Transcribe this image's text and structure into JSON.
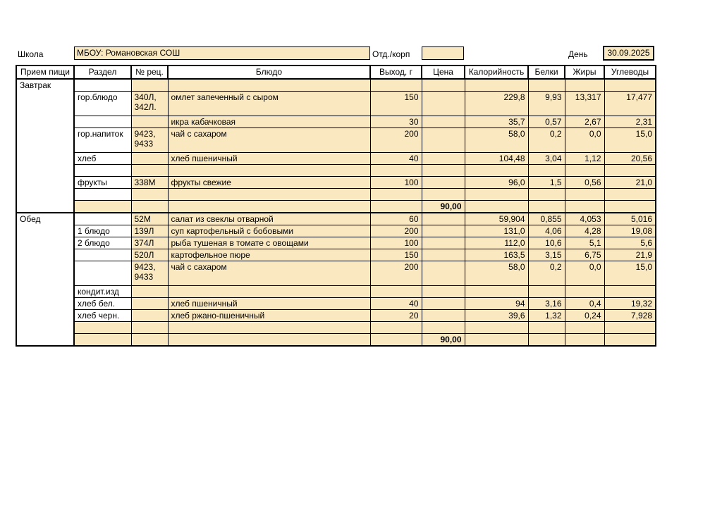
{
  "colors": {
    "cell_fill": "#fae8c0",
    "border": "#000000"
  },
  "topbar": {
    "school_label": "Школа",
    "school_value": "МБОУ: Романовская СОШ",
    "dept_label": "Отд./корп",
    "dept_value": "",
    "day_label": "День",
    "day_value": "30.09.2025"
  },
  "table": {
    "headers": [
      "Прием пищи",
      "Раздел",
      "№ рец.",
      "Блюдо",
      "Выход, г",
      "Цена",
      "Калорийность",
      "Белки",
      "Жиры",
      "Углеводы"
    ],
    "sections": [
      {
        "meal": "Завтрак",
        "rows": [
          {
            "razdel": "",
            "rec": "",
            "dish": "",
            "out": "",
            "price": "",
            "cal": "",
            "prot": "",
            "fat": "",
            "carb": ""
          },
          {
            "razdel": "гор.блюдо",
            "rec": "340Л,\n342Л.",
            "dish": "омлет запеченный с сыром",
            "out": "150",
            "price": "",
            "cal": "229,8",
            "prot": "9,93",
            "fat": "13,317",
            "carb": "17,477",
            "tall": true
          },
          {
            "razdel": "",
            "rec": "",
            "dish": "икра кабачковая",
            "out": "30",
            "price": "",
            "cal": "35,7",
            "prot": "0,57",
            "fat": "2,67",
            "carb": "2,31"
          },
          {
            "razdel": "гор.напиток",
            "rec": "9423,\n9433",
            "dish": "чай с сахаром",
            "out": "200",
            "price": "",
            "cal": "58,0",
            "prot": "0,2",
            "fat": "0,0",
            "carb": "15,0",
            "tall": true
          },
          {
            "razdel": "хлеб",
            "rec": "",
            "dish": "хлеб пшеничный",
            "out": "40",
            "price": "",
            "cal": "104,48",
            "prot": "3,04",
            "fat": "1,12",
            "carb": "20,56"
          },
          {
            "razdel": "",
            "rec": "",
            "dish": "",
            "out": "",
            "price": "",
            "cal": "",
            "prot": "",
            "fat": "",
            "carb": ""
          },
          {
            "razdel": "фрукты",
            "rec": "338М",
            "dish": "фрукты свежие",
            "out": "100",
            "price": "",
            "cal": "96,0",
            "prot": "1,5",
            "fat": "0,56",
            "carb": "21,0"
          },
          {
            "razdel": "",
            "rec": "",
            "dish": "",
            "out": "",
            "price": "",
            "cal": "",
            "prot": "",
            "fat": "",
            "carb": ""
          },
          {
            "razdel": "",
            "rec": "",
            "dish": "",
            "out": "",
            "price": "90,00",
            "cal": "",
            "prot": "",
            "fat": "",
            "carb": "",
            "razdel_filled": true,
            "total": true
          }
        ]
      },
      {
        "meal": "Обед",
        "rows": [
          {
            "razdel": "",
            "rec": "52М",
            "dish": "салат из свеклы отварной",
            "out": "60",
            "price": "",
            "cal": "59,904",
            "prot": "0,855",
            "fat": "4,053",
            "carb": "5,016"
          },
          {
            "razdel": "1 блюдо",
            "rec": "139Л",
            "dish": "суп картофельный с бобовыми",
            "out": "200",
            "price": "",
            "cal": "131,0",
            "prot": "4,06",
            "fat": "4,28",
            "carb": "19,08"
          },
          {
            "razdel": "2 блюдо",
            "rec": "374Л",
            "dish": "рыба тушеная в томате с овощами",
            "out": "100",
            "price": "",
            "cal": "112,0",
            "prot": "10,6",
            "fat": "5,1",
            "carb": "5,6"
          },
          {
            "razdel": "",
            "rec": "520Л",
            "dish": "картофельное пюре",
            "out": "150",
            "price": "",
            "cal": "163,5",
            "prot": "3,15",
            "fat": "6,75",
            "carb": "21,9"
          },
          {
            "razdel": "",
            "rec": "9423,\n9433",
            "dish": "чай с сахаром",
            "out": "200",
            "price": "",
            "cal": "58,0",
            "prot": "0,2",
            "fat": "0,0",
            "carb": "15,0",
            "tall": true
          },
          {
            "razdel": "кондит.изд",
            "rec": "",
            "dish": "",
            "out": "",
            "price": "",
            "cal": "",
            "prot": "",
            "fat": "",
            "carb": ""
          },
          {
            "razdel": "хлеб бел.",
            "rec": "",
            "dish": "хлеб пшеничный",
            "out": "40",
            "price": "",
            "cal": "94",
            "prot": "3,16",
            "fat": "0,4",
            "carb": "19,32"
          },
          {
            "razdel": "хлеб черн.",
            "rec": "",
            "dish": "хлеб ржано-пшеничный",
            "out": "20",
            "price": "",
            "cal": "39,6",
            "prot": "1,32",
            "fat": "0,24",
            "carb": "7,928"
          },
          {
            "razdel": "",
            "rec": "",
            "dish": "",
            "out": "",
            "price": "",
            "cal": "",
            "prot": "",
            "fat": "",
            "carb": "",
            "razdel_filled": true
          },
          {
            "razdel": "",
            "rec": "",
            "dish": "",
            "out": "",
            "price": "90,00",
            "cal": "",
            "prot": "",
            "fat": "",
            "carb": "",
            "razdel_filled": true,
            "total": true
          }
        ]
      }
    ]
  }
}
